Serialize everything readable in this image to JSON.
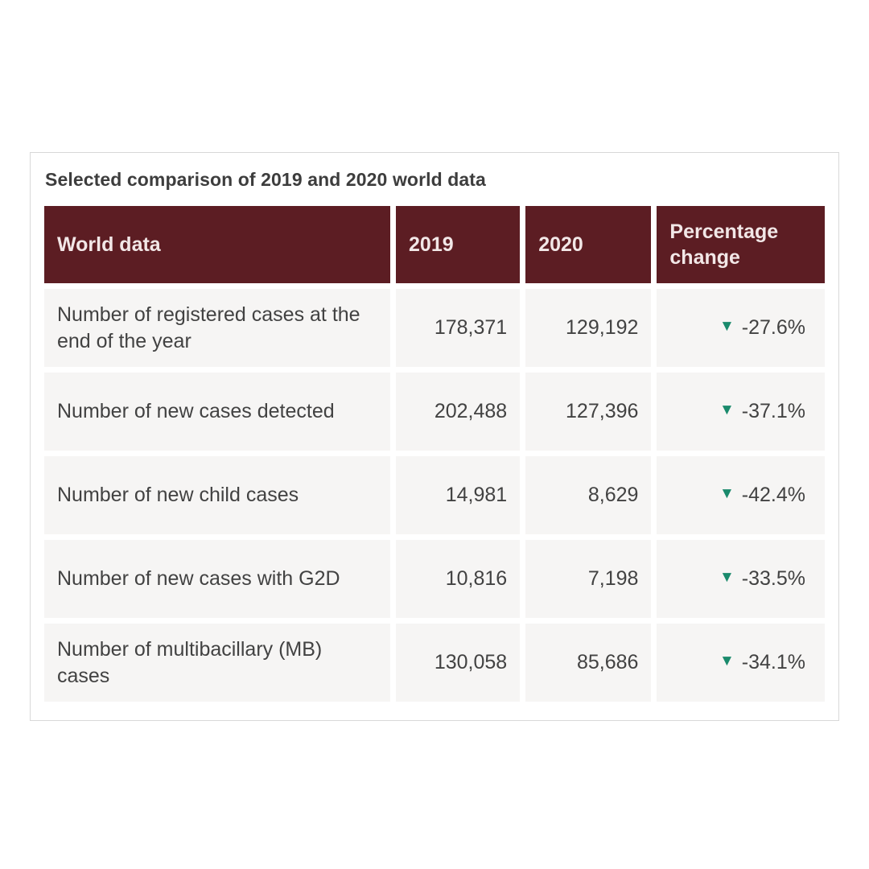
{
  "card": {
    "title": "Selected comparison of 2019 and 2020 world data"
  },
  "table": {
    "columns": [
      "World data",
      "2019",
      "2020",
      "Percentage change"
    ],
    "rows": [
      {
        "label": "Number of registered cases at the end of the year",
        "y2019": "178,371",
        "y2020": "129,192",
        "change": "-27.6%"
      },
      {
        "label": "Number of new cases detected",
        "y2019": "202,488",
        "y2020": "127,396",
        "change": "-37.1%"
      },
      {
        "label": "Number of new child cases",
        "y2019": "14,981",
        "y2020": "8,629",
        "change": "-42.4%"
      },
      {
        "label": "Number of new cases with G2D",
        "y2019": "10,816",
        "y2020": "7,198",
        "change": "-33.5%"
      },
      {
        "label": "Number of multibacillary (MB) cases",
        "y2019": "130,058",
        "y2020": "85,686",
        "change": "-34.1%"
      }
    ]
  },
  "icons": {
    "down_triangle": "▼"
  },
  "colors": {
    "header_bg": "#5c1d23",
    "header_text": "#f2e7e7",
    "row_bg": "#f6f5f4",
    "card_border": "#d8d8d8",
    "title_text": "#3d3d3d",
    "body_text": "#424242",
    "accent_down": "#1a8a6c"
  },
  "chart_data": {
    "type": "table",
    "title": "Selected comparison of 2019 and 2020 world data",
    "columns": [
      "World data",
      "2019",
      "2020",
      "Percentage change"
    ],
    "rows": [
      [
        "Number of registered cases at the end of the year",
        178371,
        129192,
        -27.6
      ],
      [
        "Number of new cases detected",
        202488,
        127396,
        -37.1
      ],
      [
        "Number of new child cases",
        14981,
        8629,
        -42.4
      ],
      [
        "Number of new cases with G2D",
        10816,
        7198,
        -33.5
      ],
      [
        "Number of multibacillary (MB) cases",
        130058,
        85686,
        -34.1
      ]
    ],
    "notes": "All percentage changes are decreases, marked with green down-pointing triangles"
  }
}
